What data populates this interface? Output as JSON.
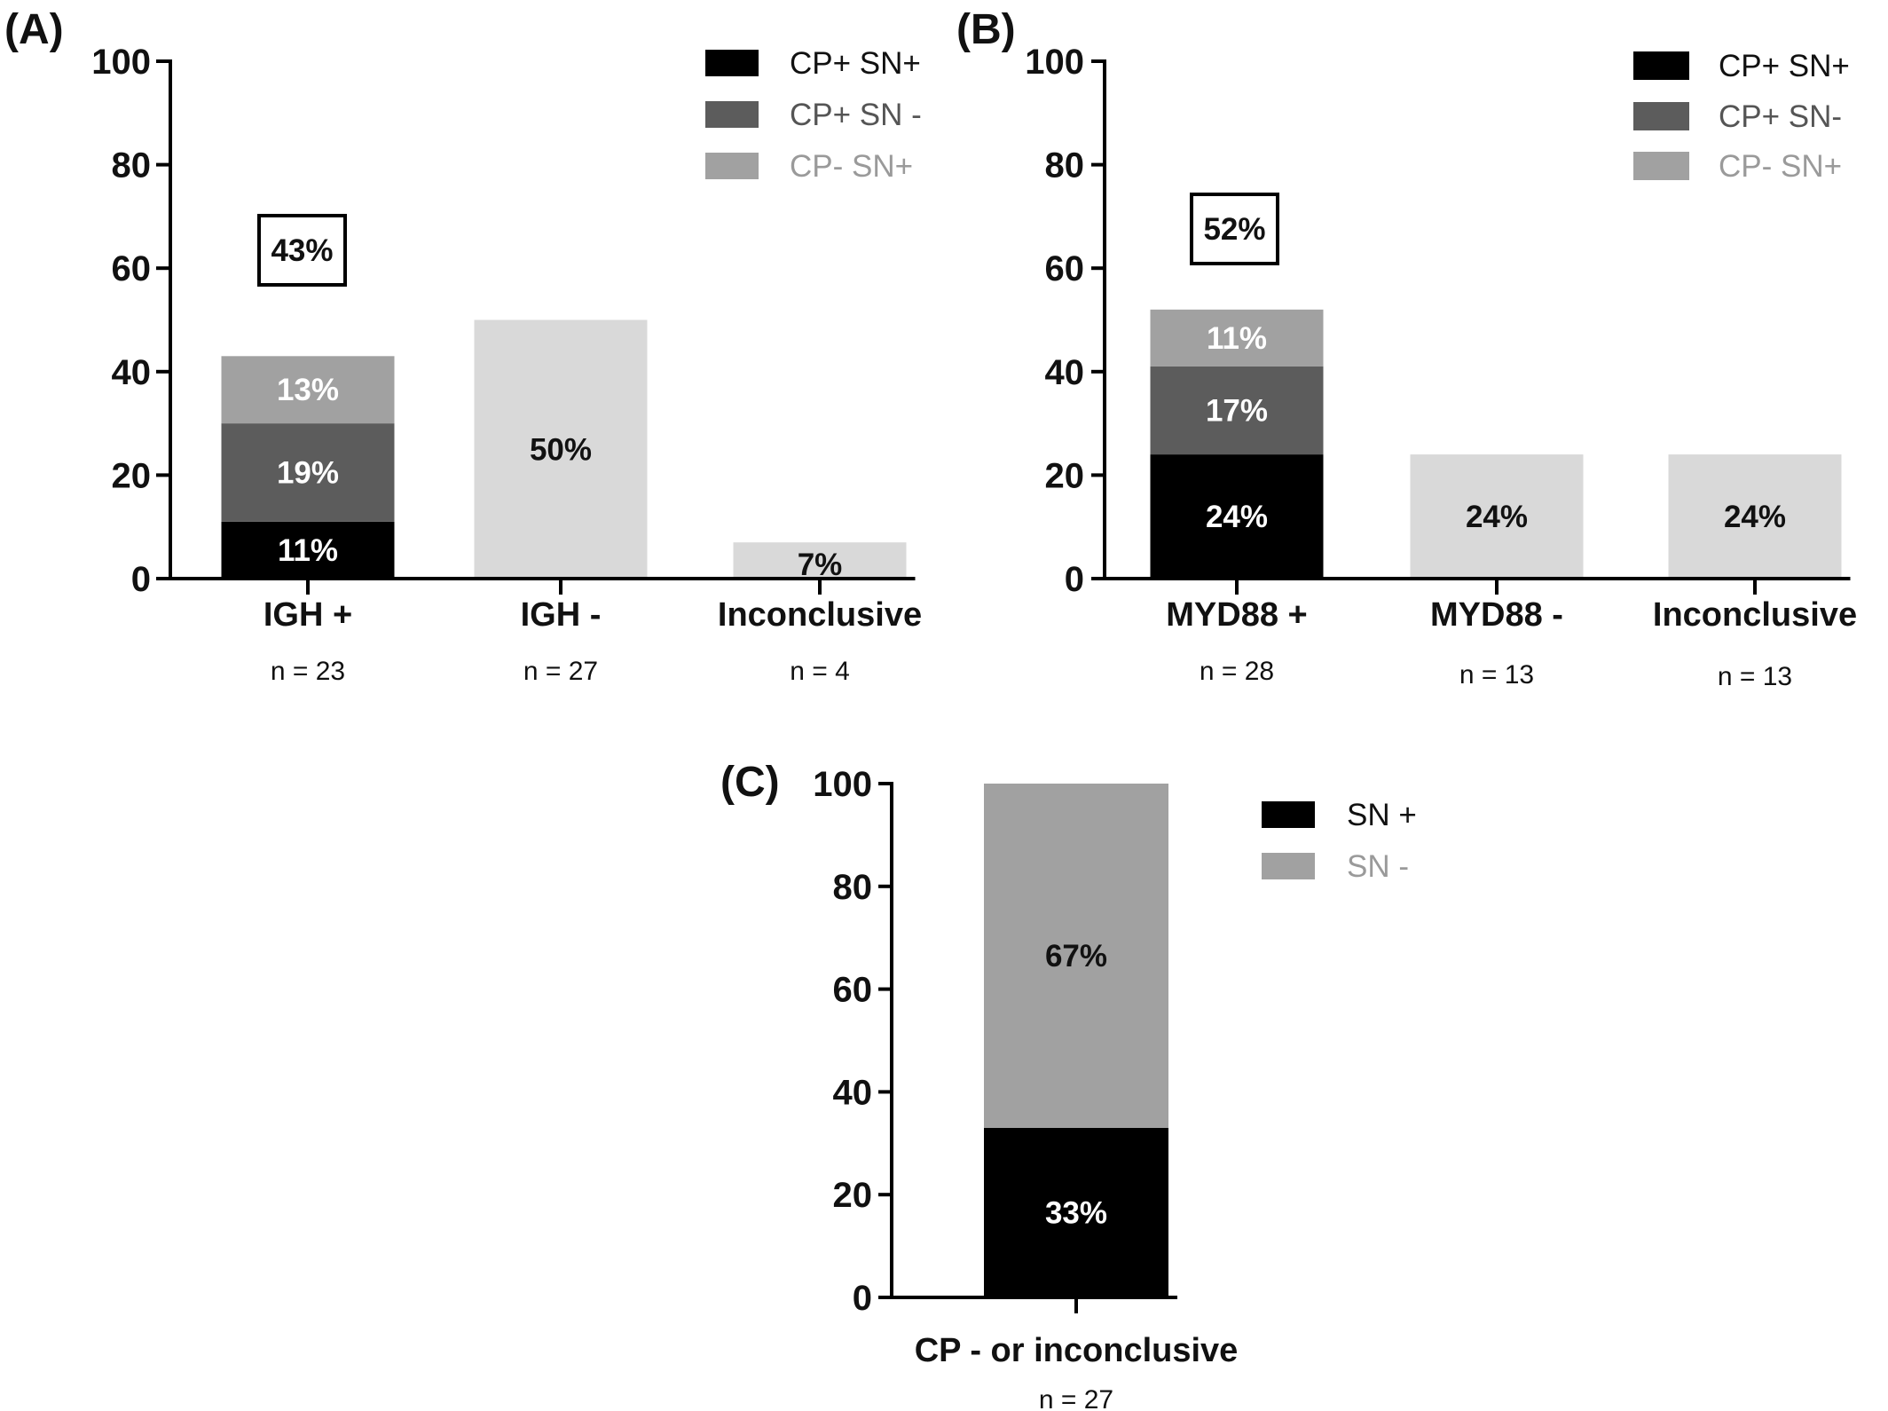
{
  "colors": {
    "cp_pos_sn_pos": "#000000",
    "cp_pos_sn_neg": "#5c5c5c",
    "cp_neg_sn_pos": "#a1a1a1",
    "negative_group": "#d9d9d9",
    "sn_neg": "#a1a1a1",
    "axis": "#000000"
  },
  "chart_data": [
    {
      "panel": "(A)",
      "type": "bar",
      "stacked": true,
      "ylim": [
        0,
        100
      ],
      "yticks": [
        0,
        20,
        40,
        60,
        80,
        100
      ],
      "categories": [
        "IGH +",
        "IGH  -",
        "Inconclusive"
      ],
      "n_labels": [
        "n = 23",
        "n = 27",
        "n = 4"
      ],
      "series": [
        {
          "name": "CP+ SN+",
          "values": [
            11,
            null,
            null
          ],
          "labels": [
            "11%",
            "",
            ""
          ]
        },
        {
          "name": "CP+ SN -",
          "values": [
            19,
            null,
            null
          ],
          "labels": [
            "19%",
            "",
            ""
          ]
        },
        {
          "name": "CP- SN+",
          "values": [
            13,
            null,
            null
          ],
          "labels": [
            "13%",
            "",
            ""
          ]
        },
        {
          "values": [
            null,
            50,
            7
          ],
          "labels": [
            "",
            "50%",
            "7%"
          ]
        }
      ],
      "callout": {
        "category": "IGH +",
        "text": "43%"
      },
      "legend": {
        "position": "top-right",
        "entries": [
          "CP+ SN+",
          "CP+ SN -",
          "CP- SN+"
        ]
      }
    },
    {
      "panel": "(B)",
      "type": "bar",
      "stacked": true,
      "ylim": [
        0,
        100
      ],
      "yticks": [
        0,
        20,
        40,
        60,
        80,
        100
      ],
      "categories": [
        "MYD88 +",
        "MYD88 -",
        "Inconclusive"
      ],
      "n_labels": [
        "n = 28",
        "n = 13",
        "n = 13"
      ],
      "series": [
        {
          "name": "CP+ SN+",
          "values": [
            24,
            null,
            null
          ],
          "labels": [
            "24%",
            "",
            ""
          ]
        },
        {
          "name": "CP+ SN-",
          "values": [
            17,
            null,
            null
          ],
          "labels": [
            "17%",
            "",
            ""
          ]
        },
        {
          "name": "CP- SN+",
          "values": [
            11,
            null,
            null
          ],
          "labels": [
            "11%",
            "",
            ""
          ]
        },
        {
          "values": [
            null,
            24,
            24
          ],
          "labels": [
            "",
            "24%",
            "24%"
          ]
        }
      ],
      "callout": {
        "category": "MYD88 +",
        "text": "52%"
      },
      "legend": {
        "position": "top-right",
        "entries": [
          "CP+ SN+",
          "CP+ SN-",
          "CP- SN+"
        ]
      }
    },
    {
      "panel": "(C)",
      "type": "bar",
      "stacked": true,
      "ylim": [
        0,
        100
      ],
      "yticks": [
        0,
        20,
        40,
        60,
        80,
        100
      ],
      "categories": [
        "CP - or inconclusive"
      ],
      "n_labels": [
        "n = 27"
      ],
      "series": [
        {
          "name": "SN +",
          "values": [
            33
          ],
          "labels": [
            "33%"
          ]
        },
        {
          "name": "SN -",
          "values": [
            67
          ],
          "labels": [
            "67%"
          ]
        }
      ],
      "legend": {
        "position": "top-right",
        "entries": [
          "SN +",
          "SN -"
        ]
      }
    }
  ]
}
